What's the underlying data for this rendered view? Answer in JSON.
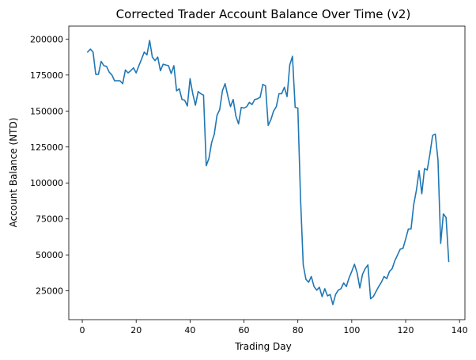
{
  "chart_data": {
    "type": "line",
    "title": "Corrected Trader Account Balance Over Time (v2)",
    "xlabel": "Trading Day",
    "ylabel": "Account Balance (NTD)",
    "xlim": [
      -5,
      142
    ],
    "ylim": [
      5000,
      209000
    ],
    "xticks": [
      0,
      20,
      40,
      60,
      80,
      100,
      120,
      140
    ],
    "yticks": [
      25000,
      50000,
      75000,
      100000,
      125000,
      150000,
      175000,
      200000
    ],
    "grid": false,
    "line_color": "#1f77b4",
    "series": [
      {
        "name": "",
        "x": [
          2,
          3,
          4,
          5,
          6,
          7,
          8,
          9,
          10,
          11,
          12,
          13,
          14,
          15,
          16,
          17,
          18,
          19,
          20,
          21,
          22,
          23,
          24,
          25,
          26,
          27,
          28,
          29,
          30,
          31,
          32,
          33,
          34,
          35,
          36,
          37,
          38,
          39,
          40,
          41,
          42,
          43,
          44,
          45,
          46,
          47,
          48,
          49,
          50,
          51,
          52,
          53,
          54,
          55,
          56,
          57,
          58,
          59,
          60,
          61,
          62,
          63,
          64,
          65,
          66,
          67,
          68,
          69,
          70,
          71,
          72,
          73,
          74,
          75,
          76,
          77,
          78,
          79,
          80,
          81,
          82,
          83,
          84,
          85,
          86,
          87,
          88,
          89,
          90,
          91,
          92,
          93,
          94,
          95,
          96,
          97,
          98,
          99,
          100,
          101,
          102,
          103,
          104,
          105,
          106,
          107,
          108,
          109,
          110,
          111,
          112,
          113,
          114,
          115,
          116,
          117,
          118,
          119,
          120,
          121,
          122,
          123,
          124,
          125,
          126,
          127,
          128,
          129,
          130,
          131,
          132,
          133,
          134,
          135,
          136
        ],
        "y": [
          191000,
          193000,
          191000,
          175500,
          175500,
          184500,
          181500,
          181000,
          177000,
          175000,
          171000,
          171000,
          171000,
          169000,
          178500,
          176500,
          178000,
          180000,
          176500,
          181500,
          186000,
          191000,
          189000,
          199000,
          187500,
          185000,
          187500,
          178000,
          182500,
          182000,
          181500,
          176000,
          181500,
          164000,
          165500,
          158000,
          157500,
          153500,
          172500,
          162000,
          154000,
          163500,
          162000,
          161000,
          112000,
          117000,
          128000,
          134000,
          147000,
          151000,
          164000,
          169000,
          160500,
          153000,
          158000,
          146500,
          141000,
          152500,
          152000,
          153000,
          156000,
          154500,
          158000,
          158500,
          159500,
          168500,
          167500,
          140000,
          144000,
          150000,
          153000,
          162000,
          162000,
          166500,
          160000,
          182000,
          188000,
          152500,
          152000,
          89000,
          43000,
          33000,
          31000,
          35000,
          28000,
          25500,
          27500,
          21000,
          26500,
          21500,
          22500,
          15500,
          22500,
          25500,
          26500,
          30500,
          28000,
          34000,
          38500,
          43500,
          37500,
          27000,
          36500,
          40500,
          43000,
          19500,
          21000,
          24500,
          28000,
          31000,
          35000,
          33500,
          38500,
          40500,
          46000,
          50000,
          54000,
          54500,
          61000,
          68000,
          68000,
          85000,
          95000,
          108500,
          92500,
          110000,
          109000,
          120000,
          133000,
          134000,
          116000,
          58000,
          78500,
          76000,
          45500
        ]
      }
    ]
  }
}
